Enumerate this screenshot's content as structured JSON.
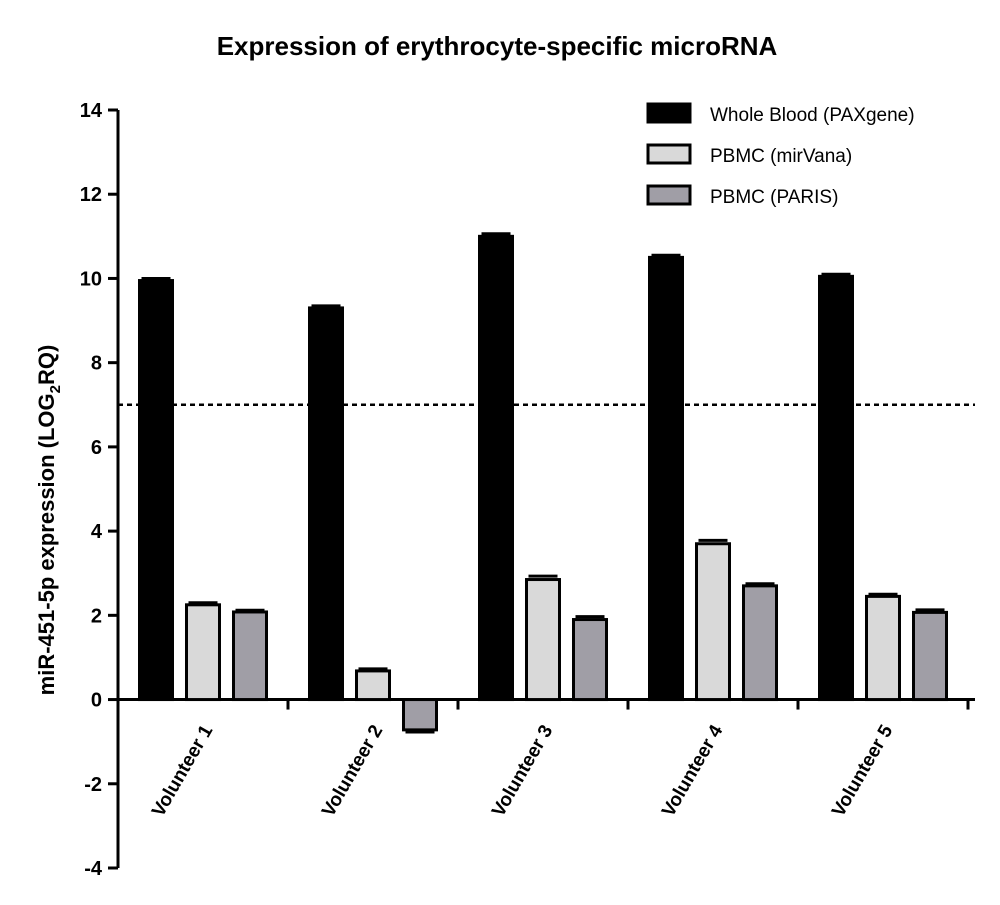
{
  "chart_data": {
    "type": "bar",
    "title": "Expression of erythrocyte-specific microRNA",
    "ylabel": "miR-451-5p expression (LOG",
    "ylabel_sub": "2",
    "ylabel_end": "RQ)",
    "xlabel": "",
    "categories": [
      "Volunteer 1",
      "Volunteer 2",
      "Volunteer 3",
      "Volunteer 4",
      "Volunteer 5"
    ],
    "series": [
      {
        "name": "Whole Blood (PAXgene)",
        "color": "#000000",
        "values": [
          9.95,
          9.3,
          11.0,
          10.5,
          10.05
        ],
        "errors": [
          0.05,
          0.05,
          0.06,
          0.05,
          0.05
        ]
      },
      {
        "name": "PBMC (mirVana)",
        "color": "#d9d9d9",
        "values": [
          2.25,
          0.68,
          2.85,
          3.7,
          2.45
        ],
        "errors": [
          0.05,
          0.05,
          0.08,
          0.08,
          0.05
        ]
      },
      {
        "name": "PBMC (PARIS)",
        "color": "#a09ea6",
        "values": [
          2.08,
          -0.72,
          1.9,
          2.7,
          2.07
        ],
        "errors": [
          0.04,
          0.05,
          0.07,
          0.05,
          0.06
        ]
      }
    ],
    "ylim": [
      -4,
      14
    ],
    "yticks": [
      -4,
      -2,
      0,
      2,
      4,
      6,
      8,
      10,
      12,
      14
    ],
    "reference_line": 7,
    "grid": false,
    "legend_position": "top-right"
  }
}
